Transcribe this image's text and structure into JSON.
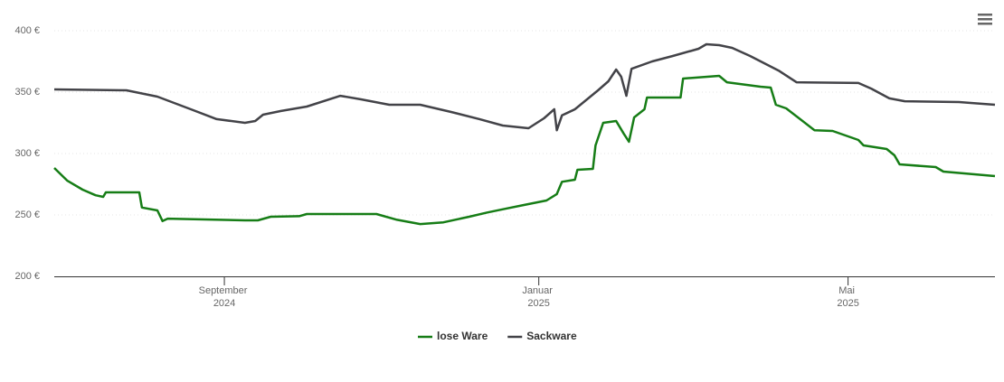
{
  "chart_data": {
    "type": "line",
    "ylim": [
      200,
      400
    ],
    "yticks": [
      {
        "value": 200,
        "label": "200 €"
      },
      {
        "value": 250,
        "label": "250 €"
      },
      {
        "value": 300,
        "label": "300 €"
      },
      {
        "value": 350,
        "label": "350 €"
      },
      {
        "value": 400,
        "label": "400 €"
      }
    ],
    "xlim": [
      "2024-06-27",
      "2025-06-27"
    ],
    "xticks": [
      {
        "value": "2024-09-01",
        "label": "September 2024"
      },
      {
        "value": "2025-01-01",
        "label": "Januar 2025"
      },
      {
        "value": "2025-05-01",
        "label": "Mai 2025"
      }
    ],
    "grid": true,
    "legend": "bottom",
    "series": [
      {
        "name": "lose Ware",
        "color": "#167d16",
        "x": [
          "2024-06-27",
          "2024-07-02",
          "2024-07-08",
          "2024-07-13",
          "2024-07-16",
          "2024-07-17",
          "2024-07-30",
          "2024-07-31",
          "2024-08-06",
          "2024-08-08",
          "2024-08-10",
          "2024-09-09",
          "2024-09-14",
          "2024-09-19",
          "2024-09-30",
          "2024-10-03",
          "2024-10-30",
          "2024-11-07",
          "2024-11-16",
          "2024-11-25",
          "2024-12-05",
          "2024-12-12",
          "2024-12-19",
          "2024-12-26",
          "2025-01-04",
          "2025-01-08",
          "2025-01-10",
          "2025-01-15",
          "2025-01-16",
          "2025-01-22",
          "2025-01-23",
          "2025-01-26",
          "2025-01-31",
          "2025-02-03",
          "2025-02-05",
          "2025-02-07",
          "2025-02-11",
          "2025-02-12",
          "2025-02-25",
          "2025-02-26",
          "2025-03-12",
          "2025-03-15",
          "2025-03-28",
          "2025-04-01",
          "2025-04-03",
          "2025-04-07",
          "2025-04-18",
          "2025-04-25",
          "2025-05-05",
          "2025-05-07",
          "2025-05-16",
          "2025-05-19",
          "2025-05-21",
          "2025-06-04",
          "2025-06-07",
          "2025-06-27"
        ],
        "values": [
          288.2,
          278,
          270.6,
          266,
          264.7,
          268.4,
          268.4,
          256,
          253.7,
          245,
          247,
          245.6,
          245.6,
          248.5,
          249,
          250.7,
          250.7,
          246,
          242.6,
          244,
          248.5,
          252,
          255,
          258,
          261.8,
          267,
          277,
          278.7,
          286.8,
          287.5,
          306.6,
          325,
          326.5,
          316,
          309.6,
          329.4,
          336,
          345.6,
          345.6,
          361,
          363.2,
          358,
          354.4,
          353.7,
          339.7,
          336.8,
          319,
          318.4,
          311,
          306.6,
          303.7,
          298.5,
          291.2,
          289,
          285.3,
          281.6
        ]
      },
      {
        "name": "Sackware",
        "color": "#434348",
        "x": [
          "2024-06-27",
          "2024-07-25",
          "2024-08-06",
          "2024-08-19",
          "2024-08-29",
          "2024-09-09",
          "2024-09-13",
          "2024-09-16",
          "2024-09-23",
          "2024-10-03",
          "2024-10-16",
          "2024-10-24",
          "2024-11-04",
          "2024-11-16",
          "2024-11-28",
          "2024-12-09",
          "2024-12-18",
          "2024-12-28",
          "2025-01-03",
          "2025-01-07",
          "2025-01-08",
          "2025-01-10",
          "2025-01-15",
          "2025-01-24",
          "2025-01-28",
          "2025-01-31",
          "2025-02-02",
          "2025-02-04",
          "2025-02-06",
          "2025-02-14",
          "2025-02-22",
          "2025-03-04",
          "2025-03-07",
          "2025-03-12",
          "2025-03-17",
          "2025-03-24",
          "2025-04-04",
          "2025-04-11",
          "2025-05-05",
          "2025-05-10",
          "2025-05-17",
          "2025-05-23",
          "2025-06-13",
          "2025-06-27"
        ],
        "values": [
          352.2,
          351.5,
          346.3,
          336,
          328,
          325,
          326.5,
          331.6,
          334.6,
          338.2,
          347,
          344.1,
          339.7,
          339.7,
          333.8,
          328,
          322.8,
          320.6,
          328.7,
          336,
          319,
          331,
          336,
          351.5,
          358.8,
          368.4,
          362.5,
          347,
          369,
          375,
          379.4,
          385.3,
          389,
          388.2,
          386,
          379.4,
          367.6,
          358,
          357.4,
          352.9,
          344.9,
          342.6,
          341.9,
          339.7
        ]
      }
    ]
  }
}
